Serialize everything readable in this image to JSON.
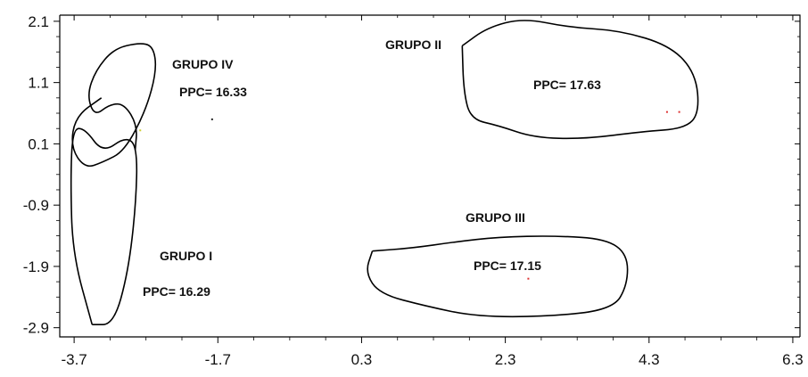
{
  "chart_data": {
    "type": "scatter",
    "title": "",
    "xlabel": "",
    "ylabel": "",
    "xlim": [
      -3.9,
      6.4
    ],
    "ylim": [
      -3.05,
      2.2
    ],
    "x_ticks": [
      -3.7,
      -1.7,
      0.3,
      2.3,
      4.3,
      6.3
    ],
    "x_tick_labels": [
      "-3.7",
      "-1.7",
      "0.3",
      "2.3",
      "4.3",
      "6.3"
    ],
    "y_ticks": [
      2.1,
      1.1,
      0.1,
      -0.9,
      -1.9,
      -2.9
    ],
    "y_tick_labels": [
      "2.1",
      "1.1",
      "0.1",
      "-0.9",
      "-1.9",
      "-2.9"
    ],
    "grid": false,
    "groups": [
      {
        "name": "GRUPO I",
        "ppc": "PPC= 16.29",
        "outline": [
          [
            -3.45,
            -2.85
          ],
          [
            -3.72,
            -1.7
          ],
          [
            -3.75,
            -0.5
          ],
          [
            -3.72,
            0.35
          ],
          [
            -3.55,
            0.35
          ],
          [
            -3.3,
            -0.05
          ],
          [
            -2.98,
            0.22
          ],
          [
            -2.82,
            0.05
          ],
          [
            -2.84,
            -0.9
          ],
          [
            -2.95,
            -2.0
          ],
          [
            -3.15,
            -2.85
          ],
          [
            -3.45,
            -2.85
          ]
        ]
      },
      {
        "name": "GRUPO IV",
        "ppc": "PPC= 16.33",
        "outline": [
          [
            -3.32,
            0.85
          ],
          [
            -3.68,
            0.55
          ],
          [
            -3.75,
            0.05
          ],
          [
            -3.55,
            -0.3
          ],
          [
            -3.3,
            -0.2
          ],
          [
            -3.0,
            -0.02
          ],
          [
            -2.7,
            0.65
          ],
          [
            -2.55,
            1.3
          ],
          [
            -2.6,
            1.7
          ],
          [
            -2.8,
            1.75
          ],
          [
            -3.15,
            1.65
          ],
          [
            -3.4,
            1.3
          ],
          [
            -3.52,
            0.9
          ],
          [
            -3.42,
            0.55
          ],
          [
            -3.2,
            0.75
          ],
          [
            -3.0,
            0.75
          ],
          [
            -2.82,
            0.4
          ],
          [
            -2.85,
            0.0
          ]
        ]
      },
      {
        "name": "GRUPO II",
        "ppc": "PPC= 17.63",
        "outline": [
          [
            1.7,
            1.7
          ],
          [
            1.72,
            0.95
          ],
          [
            1.82,
            0.5
          ],
          [
            2.2,
            0.4
          ],
          [
            2.7,
            0.2
          ],
          [
            3.4,
            0.18
          ],
          [
            4.2,
            0.3
          ],
          [
            4.8,
            0.35
          ],
          [
            5.0,
            0.6
          ],
          [
            4.95,
            1.25
          ],
          [
            4.6,
            1.7
          ],
          [
            3.9,
            1.95
          ],
          [
            3.2,
            2.0
          ],
          [
            2.55,
            2.15
          ],
          [
            2.05,
            2.0
          ],
          [
            1.7,
            1.7
          ]
        ]
      },
      {
        "name": "GRUPO III",
        "ppc": "PPC= 17.15",
        "outline": [
          [
            0.45,
            -1.65
          ],
          [
            0.35,
            -2.0
          ],
          [
            0.55,
            -2.35
          ],
          [
            1.2,
            -2.55
          ],
          [
            1.9,
            -2.72
          ],
          [
            2.9,
            -2.72
          ],
          [
            3.8,
            -2.6
          ],
          [
            4.0,
            -2.2
          ],
          [
            4.0,
            -1.7
          ],
          [
            3.7,
            -1.45
          ],
          [
            3.0,
            -1.4
          ],
          [
            2.2,
            -1.42
          ],
          [
            1.6,
            -1.5
          ],
          [
            1.0,
            -1.6
          ],
          [
            0.45,
            -1.65
          ]
        ]
      }
    ],
    "markers": [
      {
        "x": -1.78,
        "y": 0.5,
        "color": "#222222"
      },
      {
        "x": -2.78,
        "y": 0.32,
        "color": "#cccc33"
      },
      {
        "x": 4.55,
        "y": 0.62,
        "color": "#dd3333"
      },
      {
        "x": 4.72,
        "y": 0.62,
        "color": "#dd3333"
      },
      {
        "x": 2.62,
        "y": -2.1,
        "color": "#dd3333"
      }
    ]
  }
}
